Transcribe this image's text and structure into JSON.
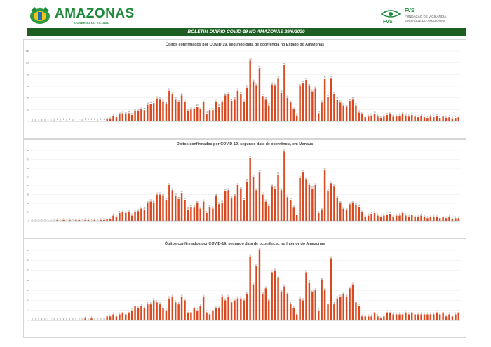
{
  "header": {
    "brand_name": "AMAZONAS",
    "brand_sub": "GOVERNO DO ESTADO",
    "fvs_code": "FVS",
    "fvs_name_line1": "FUNDAÇÃO DE VIGILÂNCIA",
    "fvs_name_line2": "EM SAÚDE DO AMAZONAS",
    "logo_badge_icon": "amazonas-state-emblem-icon",
    "fvs_icon": "fvs-eye-logo-icon"
  },
  "title_bar": "BOLETIM DIÁRIO COVID-19 NO AMAZONAS 29/6/2020",
  "colors": {
    "bar": "#d9481f",
    "green": "#1f8a3a",
    "title_bar": "#1f5e22"
  },
  "chart_data": [
    {
      "type": "bar",
      "title": "Óbitos confirmados por COVID-19, segundo data de ocorrência no Estado do Amazonas",
      "xlabel": "",
      "ylabel": "",
      "ylim": [
        0,
        120
      ],
      "yticks": [
        0,
        20,
        40,
        60,
        80,
        100,
        120
      ],
      "grid": true,
      "values": [
        0,
        0,
        0,
        0,
        0,
        0,
        0,
        0,
        1,
        0,
        1,
        0,
        1,
        0,
        1,
        1,
        0,
        1,
        1,
        1,
        1,
        0,
        1,
        1,
        4,
        4,
        9,
        7,
        12,
        14,
        12,
        14,
        11,
        17,
        17,
        21,
        19,
        28,
        30,
        31,
        39,
        38,
        34,
        29,
        52,
        47,
        38,
        33,
        44,
        34,
        17,
        20,
        21,
        25,
        21,
        34,
        13,
        19,
        19,
        34,
        25,
        33,
        44,
        47,
        35,
        38,
        52,
        47,
        34,
        58,
        104,
        68,
        62,
        91,
        43,
        38,
        27,
        63,
        62,
        74,
        49,
        96,
        40,
        32,
        21,
        10,
        60,
        66,
        71,
        60,
        51,
        56,
        14,
        32,
        73,
        42,
        74,
        47,
        37,
        32,
        27,
        24,
        35,
        38,
        27,
        15,
        12,
        7,
        8,
        10,
        13,
        8,
        5,
        8,
        11,
        12,
        8,
        9,
        9,
        12,
        10,
        8,
        11,
        8,
        7,
        9,
        7,
        6,
        8,
        7,
        9,
        6,
        8,
        5,
        7,
        4,
        6,
        7
      ]
    },
    {
      "type": "bar",
      "title": "Óbitos confirmados por COVID-19, segundo data de ocorrência, em Manaus",
      "xlabel": "",
      "ylabel": "",
      "ylim": [
        0,
        80
      ],
      "yticks": [
        0,
        10,
        20,
        30,
        40,
        50,
        60,
        70,
        80
      ],
      "grid": true,
      "values": [
        0,
        0,
        0,
        0,
        0,
        0,
        0,
        0,
        1,
        0,
        1,
        0,
        1,
        0,
        1,
        1,
        0,
        1,
        1,
        0,
        1,
        0,
        1,
        1,
        2,
        2,
        6,
        5,
        9,
        10,
        9,
        10,
        6,
        10,
        11,
        14,
        13,
        20,
        22,
        21,
        30,
        30,
        28,
        24,
        41,
        35,
        29,
        25,
        32,
        24,
        13,
        16,
        15,
        20,
        14,
        22,
        9,
        16,
        14,
        28,
        19,
        21,
        34,
        35,
        26,
        28,
        41,
        36,
        24,
        45,
        72,
        50,
        35,
        56,
        30,
        22,
        17,
        39,
        37,
        53,
        35,
        79,
        27,
        24,
        15,
        7,
        49,
        56,
        47,
        41,
        37,
        41,
        9,
        12,
        58,
        34,
        43,
        39,
        26,
        20,
        14,
        12,
        19,
        20,
        18,
        16,
        10,
        5,
        6,
        8,
        9,
        6,
        4,
        6,
        7,
        8,
        5,
        6,
        6,
        9,
        6,
        5,
        7,
        5,
        4,
        6,
        4,
        3,
        5,
        4,
        5,
        3,
        4,
        3,
        4,
        2,
        3,
        3
      ]
    },
    {
      "type": "bar",
      "title": "Óbitos  confirmados por COVID-19, segundo data de ocorrência, no Interior do Amazonas",
      "xlabel": "",
      "ylabel": "",
      "ylim": [
        0,
        35
      ],
      "yticks": [
        0,
        5,
        10,
        15,
        20,
        25,
        30,
        35
      ],
      "grid": true,
      "values": [
        0,
        0,
        0,
        0,
        0,
        0,
        0,
        0,
        0,
        0,
        0,
        0,
        0,
        0,
        0,
        0,
        0,
        1,
        0,
        1,
        0,
        0,
        0,
        0,
        2,
        2,
        3,
        2,
        3,
        4,
        3,
        4,
        5,
        7,
        6,
        7,
        6,
        8,
        8,
        10,
        9,
        8,
        6,
        5,
        11,
        12,
        9,
        8,
        12,
        10,
        4,
        4,
        6,
        5,
        7,
        12,
        4,
        3,
        5,
        6,
        6,
        12,
        10,
        12,
        9,
        10,
        11,
        11,
        10,
        13,
        32,
        18,
        27,
        35,
        13,
        16,
        10,
        24,
        25,
        21,
        14,
        17,
        13,
        8,
        6,
        3,
        11,
        10,
        24,
        19,
        14,
        15,
        5,
        20,
        15,
        8,
        31,
        8,
        11,
        12,
        13,
        12,
        16,
        18,
        9,
        7,
        2,
        2,
        2,
        2,
        4,
        2,
        1,
        2,
        4,
        4,
        3,
        3,
        3,
        3,
        4,
        3,
        4,
        3,
        3,
        3,
        3,
        3,
        3,
        3,
        4,
        3,
        4,
        2,
        3,
        2,
        3,
        4
      ]
    }
  ]
}
